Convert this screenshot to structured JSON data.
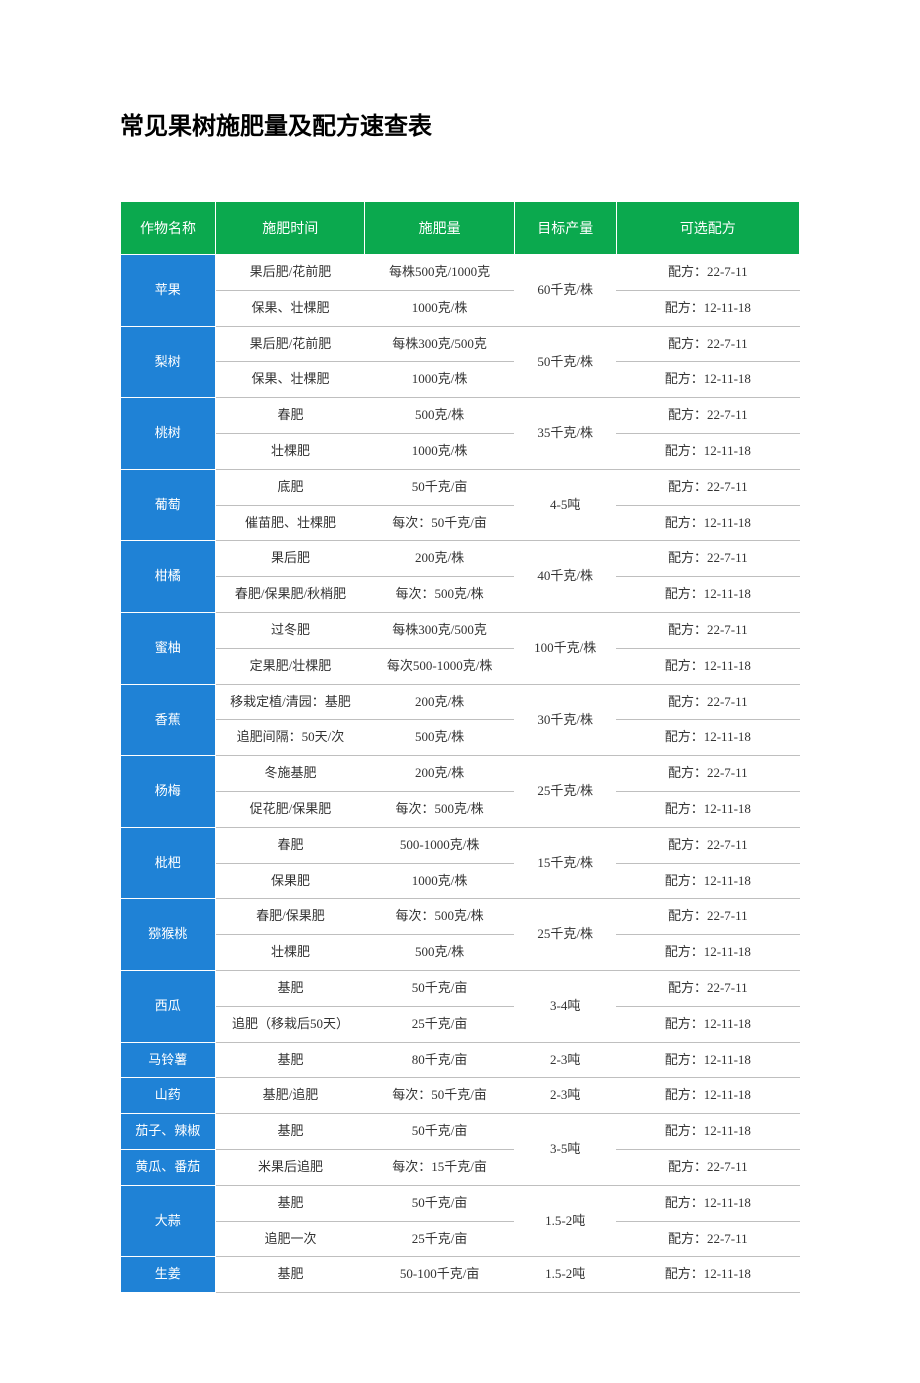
{
  "title": "常见果树施肥量及配方速查表",
  "colors": {
    "header_bg": "#0ba94e",
    "crop_bg": "#1f82d6",
    "header_fg": "#ffffff",
    "crop_fg": "#ffffff",
    "cell_border": "#bfbfbf",
    "text": "#333333",
    "background": "#ffffff"
  },
  "fonts": {
    "title_size_pt": 24,
    "header_size_pt": 14,
    "cell_size_pt": 13
  },
  "headers": [
    "作物名称",
    "施肥时间",
    "施肥量",
    "目标产量",
    "可选配方"
  ],
  "col_widths_pct": [
    14,
    22,
    22,
    15,
    27
  ],
  "groups": [
    {
      "crop": "苹果",
      "yield": "60千克/株",
      "rows": [
        {
          "t": "果后肥/花前肥",
          "a": "每株500克/1000克",
          "f": "配方：22-7-11"
        },
        {
          "t": "保果、壮棵肥",
          "a": "1000克/株",
          "f": "配方：12-11-18"
        }
      ]
    },
    {
      "crop": "梨树",
      "yield": "50千克/株",
      "rows": [
        {
          "t": "果后肥/花前肥",
          "a": "每株300克/500克",
          "f": "配方：22-7-11"
        },
        {
          "t": "保果、壮棵肥",
          "a": "1000克/株",
          "f": "配方：12-11-18"
        }
      ]
    },
    {
      "crop": "桃树",
      "yield": "35千克/株",
      "rows": [
        {
          "t": "春肥",
          "a": "500克/株",
          "f": "配方：22-7-11"
        },
        {
          "t": "壮棵肥",
          "a": "1000克/株",
          "f": "配方：12-11-18"
        }
      ]
    },
    {
      "crop": "葡萄",
      "yield": "4-5吨",
      "rows": [
        {
          "t": "底肥",
          "a": "50千克/亩",
          "f": "配方：22-7-11"
        },
        {
          "t": "催苗肥、壮棵肥",
          "a": "每次：50千克/亩",
          "f": "配方：12-11-18"
        }
      ]
    },
    {
      "crop": "柑橘",
      "yield": "40千克/株",
      "rows": [
        {
          "t": "果后肥",
          "a": "200克/株",
          "f": "配方：22-7-11"
        },
        {
          "t": "春肥/保果肥/秋梢肥",
          "a": "每次：500克/株",
          "f": "配方：12-11-18"
        }
      ]
    },
    {
      "crop": "蜜柚",
      "yield": "100千克/株",
      "rows": [
        {
          "t": "过冬肥",
          "a": "每株300克/500克",
          "f": "配方：22-7-11"
        },
        {
          "t": "定果肥/壮棵肥",
          "a": "每次500-1000克/株",
          "f": "配方：12-11-18"
        }
      ]
    },
    {
      "crop": "香蕉",
      "yield": "30千克/株",
      "rows": [
        {
          "t": "移栽定植/清园：基肥",
          "a": "200克/株",
          "f": "配方：22-7-11"
        },
        {
          "t": "追肥间隔：50天/次",
          "a": "500克/株",
          "f": "配方：12-11-18"
        }
      ]
    },
    {
      "crop": "杨梅",
      "yield": "25千克/株",
      "rows": [
        {
          "t": "冬施基肥",
          "a": "200克/株",
          "f": "配方：22-7-11"
        },
        {
          "t": "促花肥/保果肥",
          "a": "每次：500克/株",
          "f": "配方：12-11-18"
        }
      ]
    },
    {
      "crop": "枇杷",
      "yield": "15千克/株",
      "rows": [
        {
          "t": "春肥",
          "a": "500-1000克/株",
          "f": "配方：22-7-11"
        },
        {
          "t": "保果肥",
          "a": "1000克/株",
          "f": "配方：12-11-18"
        }
      ]
    },
    {
      "crop": "猕猴桃",
      "yield": "25千克/株",
      "rows": [
        {
          "t": "春肥/保果肥",
          "a": "每次：500克/株",
          "f": "配方：22-7-11"
        },
        {
          "t": "壮棵肥",
          "a": "500克/株",
          "f": "配方：12-11-18"
        }
      ]
    },
    {
      "crop": "西瓜",
      "yield": "3-4吨",
      "rows": [
        {
          "t": "基肥",
          "a": "50千克/亩",
          "f": "配方：22-7-11"
        },
        {
          "t": "追肥（移栽后50天）",
          "a": "25千克/亩",
          "f": "配方：12-11-18"
        }
      ]
    },
    {
      "crop": "马铃薯",
      "yield": "2-3吨",
      "rows": [
        {
          "t": "基肥",
          "a": "80千克/亩",
          "f": "配方：12-11-18"
        }
      ]
    },
    {
      "crop": "山药",
      "yield": "2-3吨",
      "rows": [
        {
          "t": "基肥/追肥",
          "a": "每次：50千克/亩",
          "f": "配方：12-11-18"
        }
      ]
    },
    {
      "crop_multi": [
        "茄子、辣椒",
        "黄瓜、番茄"
      ],
      "yield": "3-5吨",
      "rows": [
        {
          "t": "基肥",
          "a": "50千克/亩",
          "f": "配方：12-11-18"
        },
        {
          "t": "米果后追肥",
          "a": "每次：15千克/亩",
          "f": "配方：22-7-11"
        }
      ]
    },
    {
      "crop": "大蒜",
      "yield": "1.5-2吨",
      "rows": [
        {
          "t": "基肥",
          "a": "50千克/亩",
          "f": "配方：12-11-18"
        },
        {
          "t": "追肥一次",
          "a": "25千克/亩",
          "f": "配方：22-7-11"
        }
      ]
    },
    {
      "crop": "生姜",
      "yield": "1.5-2吨",
      "rows": [
        {
          "t": "基肥",
          "a": "50-100千克/亩",
          "f": "配方：12-11-18"
        }
      ]
    }
  ]
}
